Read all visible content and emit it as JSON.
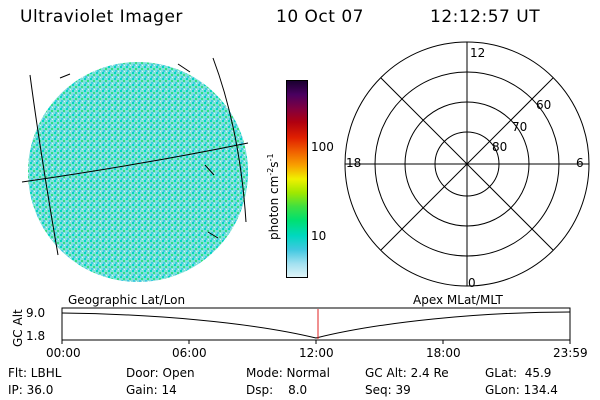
{
  "header": {
    "title": "Ultraviolet Imager",
    "date": "10 Oct 07",
    "time": "12:12:57 UT"
  },
  "colorbar": {
    "unit_label": "photon cm",
    "unit_sup1": "-2",
    "unit_mid": "s",
    "unit_sup2": "-1",
    "ticks": [
      "100",
      "10"
    ],
    "colors": [
      "#1a0030",
      "#4a0060",
      "#800040",
      "#b00010",
      "#e02000",
      "#f06000",
      "#f8a000",
      "#f0f000",
      "#a0e800",
      "#40e040",
      "#00e070",
      "#00d8c0",
      "#40c8e0",
      "#a0e0f0",
      "#e0f4f8"
    ]
  },
  "polar_plot": {
    "mlt_labels": {
      "top": "12",
      "left": "18",
      "right": "6",
      "bottom": "0"
    },
    "lat_labels": [
      "60",
      "70",
      "80"
    ]
  },
  "timeline": {
    "left_label": "Geographic Lat/Lon",
    "right_label": "Apex MLat/MLT",
    "y_axis_label": "GC Alt",
    "y_ticks": [
      "9.0",
      "1.8"
    ],
    "x_ticks": [
      "00:00",
      "06:00",
      "12:00",
      "18:00",
      "23:59"
    ],
    "current_marker_time": "12:12"
  },
  "status": {
    "flt": "Flt: LBHL",
    "ip": "IP: 36.0",
    "door": "Door: Open",
    "gain": "Gain: 14",
    "mode": "Mode: Normal",
    "dsp": "Dsp:",
    "dsp_val": "8.0",
    "gc_alt": "GC Alt: 2.4 Re",
    "seq": "Seq: 39",
    "glat": "GLat:  45.9",
    "glon": "GLon: 134.4"
  }
}
